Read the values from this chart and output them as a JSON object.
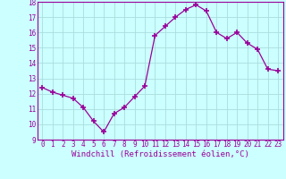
{
  "x": [
    0,
    1,
    2,
    3,
    4,
    5,
    6,
    7,
    8,
    9,
    10,
    11,
    12,
    13,
    14,
    15,
    16,
    17,
    18,
    19,
    20,
    21,
    22,
    23
  ],
  "y": [
    12.4,
    12.1,
    11.9,
    11.7,
    11.1,
    10.2,
    9.5,
    10.7,
    11.1,
    11.8,
    12.5,
    15.8,
    16.4,
    17.0,
    17.5,
    17.8,
    17.4,
    16.0,
    15.6,
    16.0,
    15.3,
    14.9,
    13.6,
    13.5
  ],
  "line_color": "#990099",
  "marker": "+",
  "marker_size": 4,
  "marker_lw": 1.2,
  "bg_color": "#ccffff",
  "grid_color": "#aadddd",
  "xlabel": "Windchill (Refroidissement éolien,°C)",
  "ylim": [
    9,
    18
  ],
  "xlim": [
    -0.5,
    23.5
  ],
  "yticks": [
    9,
    10,
    11,
    12,
    13,
    14,
    15,
    16,
    17,
    18
  ],
  "xticks": [
    0,
    1,
    2,
    3,
    4,
    5,
    6,
    7,
    8,
    9,
    10,
    11,
    12,
    13,
    14,
    15,
    16,
    17,
    18,
    19,
    20,
    21,
    22,
    23
  ],
  "tick_label_fontsize": 5.5,
  "xlabel_fontsize": 6.5,
  "tick_color": "#990099",
  "axis_color": "#990099",
  "linewidth": 0.9
}
